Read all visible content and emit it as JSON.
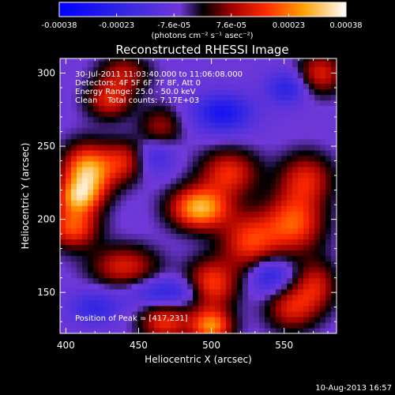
{
  "chart_data": {
    "type": "heatmap",
    "title": "Reconstructed RHESSI Image",
    "xlabel": "Heliocentric X (arcsec)",
    "ylabel": "Heliocentric Y (arcsec)",
    "xlim": [
      396,
      586
    ],
    "ylim": [
      122,
      310
    ],
    "x_ticks": [
      400,
      450,
      500,
      550
    ],
    "y_ticks": [
      150,
      200,
      250,
      300
    ],
    "colorbar": {
      "ticks": [
        "-0.00038",
        "-0.00023",
        "-7.6e-05",
        "7.6e-05",
        "0.00023",
        "0.00038"
      ],
      "range": [
        -0.00038,
        0.00038
      ],
      "unit_label": "(photons cm⁻² s⁻¹ asec⁻²)"
    },
    "annotations": [
      "30-Jul-2011 11:03:40.000 to 11:06:08.000",
      "Detectors: 4F 5F 6F 7F 8F, Att 0",
      "Energy Range: 25.0 - 50.0 keV",
      "Clean    Total counts: 7.17E+03"
    ],
    "peak_label": "Position of Peak = [417,231]",
    "peak_position": [
      417,
      231
    ],
    "blobs": [
      {
        "x": 415,
        "y": 232,
        "v": 0.00038,
        "sx": 12,
        "sy": 13
      },
      {
        "x": 408,
        "y": 215,
        "v": 0.00024,
        "sx": 10,
        "sy": 8
      },
      {
        "x": 405,
        "y": 195,
        "v": 0.00026,
        "sx": 12,
        "sy": 10
      },
      {
        "x": 440,
        "y": 240,
        "v": 0.00018,
        "sx": 10,
        "sy": 10
      },
      {
        "x": 430,
        "y": 282,
        "v": 0.0002,
        "sx": 11,
        "sy": 9
      },
      {
        "x": 465,
        "y": 263,
        "v": 0.00015,
        "sx": 10,
        "sy": 10
      },
      {
        "x": 440,
        "y": 300,
        "v": 0.00016,
        "sx": 12,
        "sy": 9
      },
      {
        "x": 492,
        "y": 208,
        "v": 0.00036,
        "sx": 14,
        "sy": 10
      },
      {
        "x": 512,
        "y": 232,
        "v": 0.00022,
        "sx": 14,
        "sy": 11
      },
      {
        "x": 440,
        "y": 168,
        "v": 0.0002,
        "sx": 16,
        "sy": 10
      },
      {
        "x": 500,
        "y": 155,
        "v": 0.00026,
        "sx": 12,
        "sy": 12
      },
      {
        "x": 468,
        "y": 130,
        "v": 0.00022,
        "sx": 12,
        "sy": 10
      },
      {
        "x": 500,
        "y": 127,
        "v": 0.0003,
        "sx": 10,
        "sy": 8
      },
      {
        "x": 527,
        "y": 185,
        "v": 0.00024,
        "sx": 14,
        "sy": 14
      },
      {
        "x": 557,
        "y": 198,
        "v": 0.00026,
        "sx": 14,
        "sy": 14
      },
      {
        "x": 565,
        "y": 228,
        "v": 0.0002,
        "sx": 13,
        "sy": 12
      },
      {
        "x": 575,
        "y": 300,
        "v": 0.0002,
        "sx": 11,
        "sy": 10
      },
      {
        "x": 572,
        "y": 155,
        "v": 0.00018,
        "sx": 10,
        "sy": 12
      },
      {
        "x": 555,
        "y": 140,
        "v": 0.0002,
        "sx": 12,
        "sy": 11
      },
      {
        "x": 552,
        "y": 290,
        "v": -0.00016,
        "sx": 10,
        "sy": 8
      },
      {
        "x": 508,
        "y": 273,
        "v": -0.00022,
        "sx": 14,
        "sy": 9
      },
      {
        "x": 462,
        "y": 244,
        "v": -0.00012,
        "sx": 9,
        "sy": 9
      },
      {
        "x": 470,
        "y": 150,
        "v": -0.00017,
        "sx": 18,
        "sy": 7
      },
      {
        "x": 540,
        "y": 162,
        "v": -0.00018,
        "sx": 10,
        "sy": 9
      },
      {
        "x": 420,
        "y": 140,
        "v": -0.00014,
        "sx": 12,
        "sy": 8
      }
    ]
  },
  "footer": {
    "date": "10-Aug-2013 16:57"
  },
  "colors": {
    "background": "#000000",
    "foreground": "#ffffff"
  }
}
